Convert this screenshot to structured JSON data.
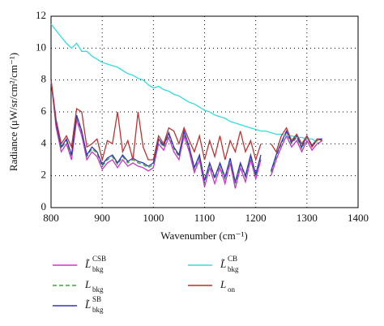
{
  "chart_data": {
    "type": "line",
    "xlabel": "Wavenumber (cm⁻¹)",
    "ylabel": "Radiance (μW/sr/cm²/cm⁻¹)",
    "x": [
      800,
      810,
      820,
      830,
      840,
      850,
      860,
      870,
      880,
      890,
      900,
      910,
      920,
      930,
      940,
      950,
      960,
      970,
      980,
      990,
      1000,
      1010,
      1020,
      1030,
      1040,
      1050,
      1060,
      1070,
      1080,
      1090,
      1100,
      1110,
      1120,
      1130,
      1140,
      1150,
      1160,
      1170,
      1180,
      1190,
      1200,
      1210,
      1220,
      1230,
      1240,
      1250,
      1260,
      1270,
      1280,
      1290,
      1300,
      1310,
      1320,
      1330
    ],
    "xlim": [
      800,
      1400
    ],
    "xticks": [
      800,
      900,
      1000,
      1100,
      1200,
      1300,
      1400
    ],
    "ylim": [
      0,
      12
    ],
    "yticks": [
      0,
      2,
      4,
      6,
      8,
      10,
      12
    ],
    "grid": true,
    "series": [
      {
        "name": "L̃",
        "sub": "bkg",
        "sup": "CSB",
        "color": "#cc33cc",
        "dash": false,
        "values": [
          8.0,
          5.0,
          3.5,
          4.0,
          3.0,
          5.5,
          4.5,
          3.0,
          3.5,
          3.2,
          2.4,
          2.8,
          3.0,
          2.5,
          3.0,
          2.6,
          2.8,
          2.6,
          2.5,
          2.3,
          2.5,
          4.0,
          3.6,
          4.4,
          3.5,
          3.0,
          4.5,
          3.5,
          2.2,
          3.0,
          1.3,
          2.5,
          1.5,
          2.5,
          1.5,
          2.8,
          1.2,
          2.5,
          1.6,
          3.0,
          1.8,
          3.0,
          null,
          2.0,
          3.0,
          3.8,
          4.5,
          3.8,
          4.2,
          3.5,
          4.2,
          3.6,
          4.0,
          4.2
        ]
      },
      {
        "name": "L",
        "sub": "bkg",
        "color": "#33aa33",
        "dash": true,
        "values": [
          8.0,
          5.2,
          3.7,
          4.2,
          3.2,
          5.7,
          4.7,
          3.2,
          3.7,
          3.4,
          2.6,
          3.0,
          3.2,
          2.7,
          3.2,
          2.8,
          3.0,
          2.8,
          2.7,
          2.5,
          2.7,
          4.2,
          3.8,
          4.6,
          3.7,
          3.2,
          4.7,
          3.7,
          2.4,
          3.2,
          1.6,
          2.7,
          1.8,
          2.7,
          1.8,
          3.0,
          1.5,
          2.7,
          1.9,
          3.2,
          2.0,
          3.2,
          null,
          2.2,
          3.2,
          4.0,
          4.7,
          4.0,
          4.4,
          3.7,
          4.4,
          3.8,
          4.2,
          4.3
        ]
      },
      {
        "name": "L̃",
        "sub": "bkg",
        "sup": "SB",
        "color": "#3333bb",
        "dash": false,
        "values": [
          8.0,
          5.3,
          3.8,
          4.3,
          3.3,
          5.8,
          4.8,
          3.3,
          3.8,
          3.5,
          2.7,
          3.1,
          3.3,
          2.8,
          3.3,
          2.9,
          3.1,
          2.9,
          2.8,
          2.6,
          2.8,
          4.3,
          3.9,
          4.7,
          3.8,
          3.3,
          4.8,
          3.8,
          2.5,
          3.3,
          1.7,
          2.8,
          1.9,
          2.8,
          1.9,
          3.1,
          1.6,
          2.8,
          2.0,
          3.3,
          2.1,
          3.3,
          null,
          2.3,
          3.3,
          4.1,
          4.8,
          4.1,
          4.5,
          3.8,
          4.5,
          3.9,
          4.3,
          4.3
        ]
      },
      {
        "name": "L̃",
        "sub": "bkg",
        "sup": "CB",
        "color": "#33dddd",
        "dash": false,
        "values": [
          11.5,
          11.1,
          10.7,
          10.3,
          10.0,
          10.3,
          9.8,
          9.8,
          9.5,
          9.3,
          9.1,
          9.0,
          8.9,
          8.8,
          8.6,
          8.4,
          8.3,
          8.1,
          8.0,
          7.7,
          7.5,
          7.6,
          7.4,
          7.3,
          7.1,
          7.0,
          6.8,
          6.6,
          6.5,
          6.3,
          6.1,
          6.0,
          5.8,
          5.7,
          5.6,
          5.4,
          5.3,
          5.2,
          5.1,
          5.0,
          4.9,
          4.8,
          4.8,
          4.7,
          4.6,
          4.6,
          4.5,
          4.5,
          4.4,
          4.4,
          4.3,
          4.3,
          4.1,
          null
        ]
      },
      {
        "name": "L",
        "sub": "on",
        "color": "#bb3333",
        "dash": false,
        "values": [
          8.0,
          5.5,
          4.0,
          4.5,
          3.8,
          6.2,
          6.0,
          3.8,
          4.0,
          4.3,
          3.0,
          4.2,
          4.0,
          6.0,
          3.5,
          4.2,
          3.0,
          6.0,
          3.8,
          3.0,
          3.0,
          4.5,
          4.0,
          5.0,
          4.8,
          4.0,
          5.0,
          4.2,
          3.5,
          4.5,
          3.0,
          4.2,
          3.2,
          4.5,
          3.0,
          4.2,
          3.5,
          4.8,
          3.5,
          4.2,
          3.0,
          4.0,
          null,
          4.0,
          3.5,
          4.5,
          5.0,
          4.2,
          4.6,
          4.0,
          4.5,
          3.8,
          4.3,
          4.2
        ]
      }
    ]
  }
}
